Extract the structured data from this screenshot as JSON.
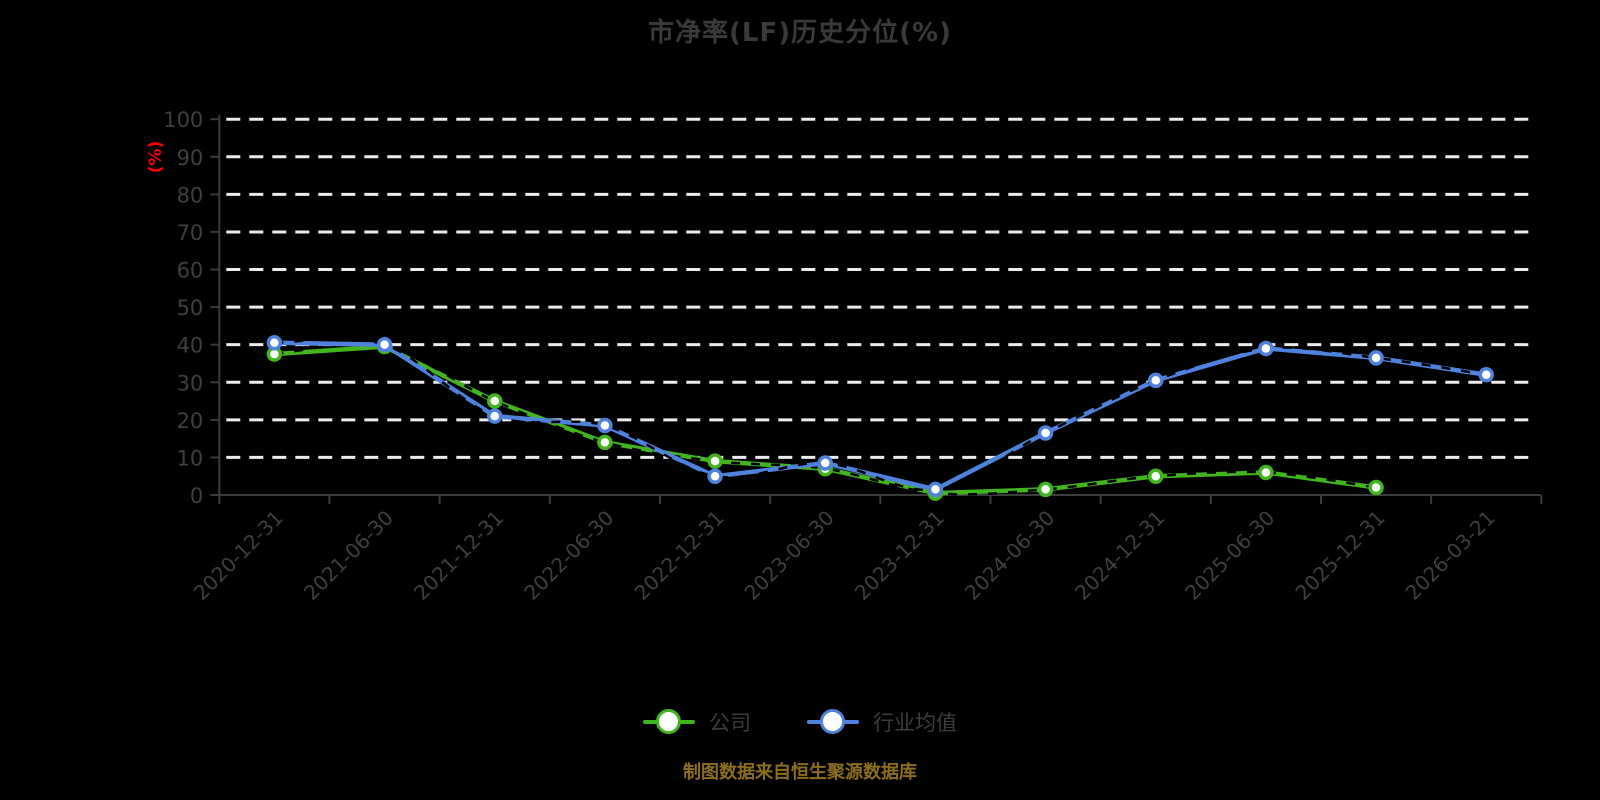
{
  "title": "市净率(LF)历史分位(%)",
  "chart_data": {
    "type": "line",
    "title": "市净率(LF)历史分位(%)",
    "ylabel": "(%)",
    "ylabel_color": "#ff0000",
    "ylim": [
      0,
      100
    ],
    "yticks": [
      0,
      10,
      20,
      30,
      40,
      50,
      60,
      70,
      80,
      90,
      100
    ],
    "grid": "horizontal-dashed-white",
    "background": "#000000",
    "legend_position": "bottom",
    "categories": [
      "2020-12-31",
      "2021-06-30",
      "2021-12-31",
      "2022-06-30",
      "2022-12-31",
      "2023-06-30",
      "2023-12-31",
      "2024-06-30",
      "2024-12-31",
      "2025-06-30",
      "2025-12-31",
      "2026-03-21"
    ],
    "series": [
      {
        "name": "公司",
        "color": "#41b41e",
        "marker": "circle-white-fill",
        "values": [
          37.5,
          39.5,
          25,
          14,
          9,
          7,
          0.5,
          1.5,
          5,
          6,
          2,
          null
        ]
      },
      {
        "name": "行业均值",
        "color": "#4e82dd",
        "marker": "circle-white-fill",
        "values": [
          40.5,
          40,
          21,
          18.5,
          5,
          8.5,
          1.5,
          16.5,
          30.5,
          39,
          36.5,
          32
        ]
      }
    ],
    "footer": "制图数据来自恒生聚源数据库",
    "footer_color": "#8d6e1d"
  }
}
